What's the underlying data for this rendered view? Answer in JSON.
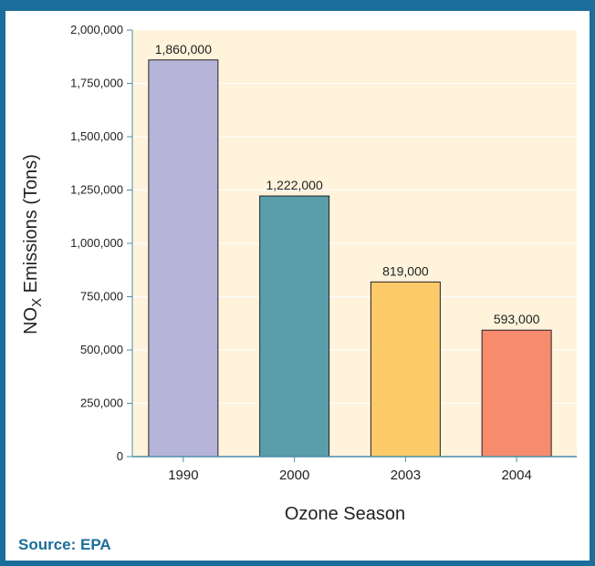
{
  "chart_data": {
    "type": "bar",
    "categories": [
      "1990",
      "2000",
      "2003",
      "2004"
    ],
    "values": [
      1860000,
      1222000,
      819000,
      593000
    ],
    "data_labels": [
      "1,860,000",
      "1,222,000",
      "819,000",
      "593,000"
    ],
    "colors": [
      "#b6b4d8",
      "#5a9dab",
      "#fdca6a",
      "#f78b6e"
    ],
    "xlabel": "Ozone Season",
    "ylabel": {
      "main": "NO",
      "subscript": "X",
      "rest": " Emissions (Tons)"
    },
    "ylim": [
      0,
      2000000
    ],
    "yticks": [
      0,
      250000,
      500000,
      750000,
      1000000,
      1250000,
      1500000,
      1750000,
      2000000
    ],
    "ytick_labels": [
      "0",
      "250,000",
      "500,000",
      "750,000",
      "1,000,000",
      "1,250,000",
      "1,500,000",
      "1,750,000",
      "2,000,000"
    ],
    "grid": true,
    "plot_background": "#fff3dc",
    "grid_color": "#ffffff",
    "axis_color": "#4a8fa8"
  },
  "source": "Source: EPA",
  "frame_color": "#1b6e9a"
}
